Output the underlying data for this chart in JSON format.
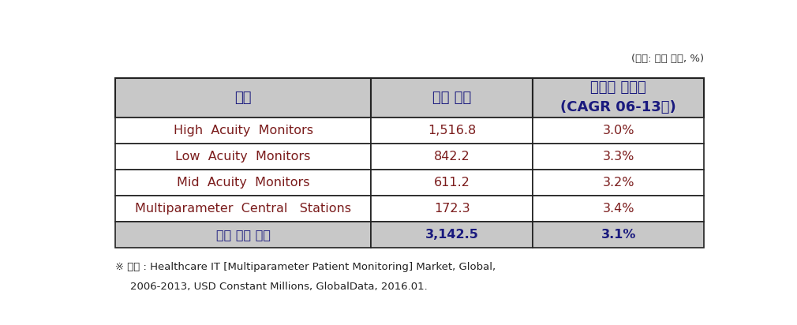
{
  "unit_label": "(단위: 백만 달러, %)",
  "header_col1": "구분",
  "header_col2": "시장 규모",
  "header_col3": "연평균 성장률\n(CAGR 06-13년)",
  "rows": [
    {
      "col1": "High  Acuity  Monitors",
      "col2": "1,516.8",
      "col3": "3.0%"
    },
    {
      "col1": "Low  Acuity  Monitors",
      "col2": "842.2",
      "col3": "3.3%"
    },
    {
      "col1": "Mid  Acuity  Monitors",
      "col2": "611.2",
      "col3": "3.2%"
    },
    {
      "col1": "Multiparameter  Central   Stations",
      "col2": "172.3",
      "col3": "3.4%"
    },
    {
      "col1": "전체 시장 규모",
      "col2": "3,142.5",
      "col3": "3.1%"
    }
  ],
  "footer_line1": "※ 자료 : Healthcare IT [Multiparameter Patient Monitoring] Market, Global,",
  "footer_line2": "      2006-2013, USD Constant Millions, GlobalData, 2016.01.",
  "header_bg": "#c8c8c8",
  "last_row_bg": "#c8c8c8",
  "data_row_bg": "#ffffff",
  "border_color": "#222222",
  "header_text_color": "#1a1a7e",
  "data_text_color": "#7b1c1c",
  "last_row_text_color": "#1a1a7e",
  "footer_text_color": "#222222",
  "unit_text_color": "#333333",
  "fig_bg": "#ffffff"
}
